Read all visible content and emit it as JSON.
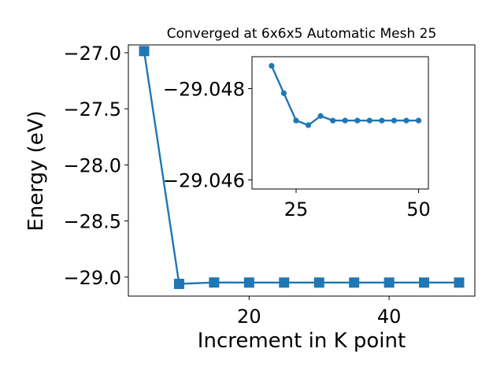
{
  "chart_data": [
    {
      "type": "line",
      "title": "Converged at 6x6x5 Automatic Mesh 25",
      "xlabel": "Increment in K point",
      "ylabel": "Energy (eV)",
      "xlim": [
        2.75,
        52.25
      ],
      "ylim": [
        -29.17,
        -26.93
      ],
      "x_ticks": [
        20,
        40
      ],
      "x_tick_labels": [
        "20",
        "40"
      ],
      "y_ticks": [
        -29.0,
        -28.5,
        -28.0,
        -27.5,
        -27.0
      ],
      "y_tick_labels": [
        "−29.0",
        "−28.5",
        "−28.0",
        "−27.5",
        "−27.0"
      ],
      "marker": "square",
      "color": "#1f77b4",
      "grid": false,
      "series": [
        {
          "x": [
            5,
            10,
            15,
            20,
            25,
            30,
            35,
            40,
            45,
            50
          ],
          "y": [
            -26.985,
            -29.061,
            -29.0486,
            -29.0492,
            -29.0493,
            -29.0494,
            -29.0494,
            -29.0494,
            -29.0494,
            -29.0494
          ]
        }
      ]
    },
    {
      "type": "line",
      "title": "",
      "inset": true,
      "xlim": [
        16,
        52
      ],
      "ylim": [
        -29.0487,
        -29.0458
      ],
      "y_reversed": true,
      "x_ticks": [
        25,
        50
      ],
      "x_tick_labels": [
        "25",
        "50"
      ],
      "y_ticks": [
        -29.048,
        -29.046
      ],
      "y_tick_labels": [
        "−29.048",
        "−29.046"
      ],
      "marker": "circle",
      "color": "#1f77b4",
      "grid": false,
      "series": [
        {
          "x": [
            20,
            22.5,
            25,
            27.5,
            30,
            32.5,
            35,
            37.5,
            40,
            42.5,
            45,
            47.5,
            50
          ],
          "y": [
            -29.0485,
            -29.0479,
            -29.0473,
            -29.0472,
            -29.0474,
            -29.0473,
            -29.0473,
            -29.0473,
            -29.0473,
            -29.0473,
            -29.0473,
            -29.0473,
            -29.0473
          ]
        }
      ]
    }
  ]
}
